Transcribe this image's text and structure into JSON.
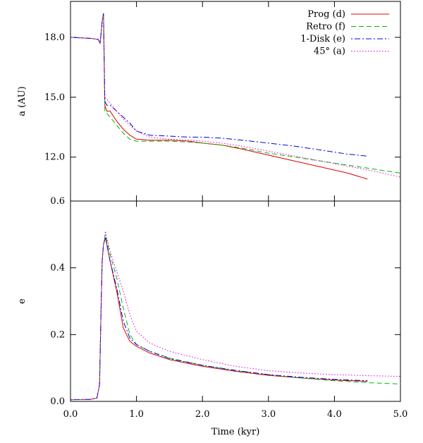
{
  "chart_data": [
    {
      "type": "line",
      "panel": "top",
      "ylabel": "a (AU)",
      "xlabel": "",
      "xlim": [
        0,
        5
      ],
      "ylim": [
        9.8,
        19.8
      ],
      "yticks": [
        12.0,
        15.0,
        18.0
      ],
      "ytick_labels": [
        "12.0",
        "15.0",
        "18.0"
      ],
      "legend": {
        "position": "top-right"
      },
      "series": [
        {
          "name": "Prog (d)",
          "color": "#e00000",
          "dash": "solid",
          "x": [
            0,
            0.3,
            0.42,
            0.45,
            0.48,
            0.5,
            0.52,
            0.55,
            0.6,
            0.7,
            0.8,
            0.9,
            1.0,
            1.2,
            1.5,
            1.8,
            2.0,
            2.3,
            2.6,
            3.0,
            3.4,
            3.8,
            4.2,
            4.5
          ],
          "y": [
            18.0,
            17.95,
            17.9,
            17.7,
            18.8,
            19.2,
            14.6,
            14.3,
            14.3,
            13.8,
            13.4,
            13.1,
            12.9,
            12.85,
            12.85,
            12.8,
            12.7,
            12.6,
            12.4,
            12.1,
            11.8,
            11.5,
            11.2,
            10.9
          ]
        },
        {
          "name": "Retro (f)",
          "color": "#00bb00",
          "dash": "7,4",
          "x": [
            0,
            0.3,
            0.42,
            0.45,
            0.48,
            0.5,
            0.52,
            0.55,
            0.6,
            0.7,
            0.8,
            0.9,
            1.0,
            1.2,
            1.5,
            1.8,
            2.0,
            2.3,
            2.6,
            3.0,
            3.4,
            3.8,
            4.2,
            4.6,
            5.0
          ],
          "y": [
            18.0,
            17.95,
            17.9,
            17.7,
            18.8,
            19.2,
            14.3,
            14.2,
            14.0,
            13.6,
            13.2,
            12.9,
            12.8,
            12.8,
            12.8,
            12.75,
            12.7,
            12.6,
            12.45,
            12.2,
            12.0,
            11.8,
            11.6,
            11.4,
            11.2
          ]
        },
        {
          "name": "1-Disk (e)",
          "color": "#0000dd",
          "dash": "2,3,8,3",
          "x": [
            0,
            0.3,
            0.42,
            0.45,
            0.48,
            0.5,
            0.52,
            0.55,
            0.6,
            0.7,
            0.8,
            0.9,
            1.0,
            1.2,
            1.5,
            1.8,
            2.0,
            2.3,
            2.6,
            3.0,
            3.4,
            3.8,
            4.2,
            4.5
          ],
          "y": [
            18.0,
            17.95,
            17.9,
            17.7,
            18.8,
            19.2,
            14.8,
            14.6,
            14.6,
            14.3,
            14.0,
            13.7,
            13.3,
            13.1,
            13.05,
            13.0,
            13.0,
            12.95,
            12.85,
            12.7,
            12.55,
            12.35,
            12.15,
            12.05
          ]
        },
        {
          "name": "45° (a)",
          "color": "#dd00dd",
          "dash": "1.5,2.5",
          "x": [
            0,
            0.3,
            0.42,
            0.45,
            0.48,
            0.5,
            0.52,
            0.55,
            0.6,
            0.7,
            0.8,
            0.9,
            1.0,
            1.2,
            1.5,
            1.8,
            2.0,
            2.3,
            2.6,
            3.0,
            3.4,
            3.8,
            4.2,
            4.6,
            5.0
          ],
          "y": [
            18.0,
            17.95,
            17.9,
            17.7,
            18.8,
            19.2,
            15.0,
            14.9,
            14.7,
            14.3,
            13.9,
            13.6,
            13.3,
            13.0,
            12.9,
            12.85,
            12.8,
            12.7,
            12.55,
            12.3,
            12.05,
            11.8,
            11.55,
            11.3,
            11.0
          ]
        }
      ]
    },
    {
      "type": "line",
      "panel": "bottom",
      "ylabel": "e",
      "xlabel": "Time (kyr)",
      "xlim": [
        0,
        5
      ],
      "ylim": [
        0,
        0.6
      ],
      "xticks": [
        0,
        1,
        2,
        3,
        4,
        5
      ],
      "xtick_labels": [
        "0.0",
        "1.0",
        "2.0",
        "3.0",
        "4.0",
        "5.0"
      ],
      "yticks": [
        0,
        0.2,
        0.4,
        0.6
      ],
      "ytick_labels": [
        "0.0",
        "0.2",
        "0.4",
        "0.6"
      ],
      "series": [
        {
          "name": "Prog (d)",
          "color": "#e00000",
          "dash": "solid",
          "x": [
            0,
            0.3,
            0.4,
            0.44,
            0.46,
            0.48,
            0.5,
            0.53,
            0.55,
            0.6,
            0.7,
            0.8,
            0.9,
            1.0,
            1.2,
            1.5,
            2.0,
            2.5,
            3.0,
            3.5,
            4.0,
            4.5
          ],
          "y": [
            0.005,
            0.006,
            0.01,
            0.05,
            0.25,
            0.42,
            0.47,
            0.49,
            0.47,
            0.42,
            0.33,
            0.22,
            0.18,
            0.165,
            0.145,
            0.125,
            0.105,
            0.09,
            0.078,
            0.07,
            0.064,
            0.06
          ]
        },
        {
          "name": "Retro (f)",
          "color": "#00bb00",
          "dash": "7,4",
          "x": [
            0,
            0.3,
            0.4,
            0.44,
            0.46,
            0.48,
            0.5,
            0.53,
            0.55,
            0.6,
            0.7,
            0.8,
            0.9,
            1.0,
            1.2,
            1.5,
            2.0,
            2.5,
            3.0,
            3.5,
            4.0,
            4.5,
            5.0
          ],
          "y": [
            0.005,
            0.006,
            0.01,
            0.05,
            0.25,
            0.42,
            0.47,
            0.5,
            0.48,
            0.44,
            0.37,
            0.28,
            0.2,
            0.17,
            0.15,
            0.13,
            0.108,
            0.092,
            0.08,
            0.07,
            0.062,
            0.056,
            0.052
          ]
        },
        {
          "name": "1-Disk (e)",
          "color": "#0000dd",
          "dash": "2,3,8,3",
          "x": [
            0,
            0.3,
            0.4,
            0.44,
            0.46,
            0.48,
            0.5,
            0.53,
            0.55,
            0.6,
            0.7,
            0.8,
            0.9,
            1.0,
            1.2,
            1.5,
            2.0,
            2.5,
            3.0,
            3.5,
            4.0,
            4.5
          ],
          "y": [
            0.005,
            0.006,
            0.01,
            0.05,
            0.25,
            0.42,
            0.47,
            0.49,
            0.47,
            0.42,
            0.34,
            0.24,
            0.19,
            0.17,
            0.15,
            0.128,
            0.108,
            0.093,
            0.08,
            0.072,
            0.066,
            0.062
          ]
        },
        {
          "name": "45° (a)",
          "color": "#dd00dd",
          "dash": "1.5,2.5",
          "x": [
            0,
            0.3,
            0.4,
            0.44,
            0.46,
            0.48,
            0.5,
            0.53,
            0.55,
            0.6,
            0.7,
            0.8,
            0.9,
            1.0,
            1.2,
            1.5,
            2.0,
            2.5,
            3.0,
            3.5,
            4.0,
            4.5,
            5.0
          ],
          "y": [
            0.005,
            0.006,
            0.01,
            0.05,
            0.25,
            0.42,
            0.47,
            0.51,
            0.49,
            0.45,
            0.39,
            0.33,
            0.26,
            0.21,
            0.175,
            0.15,
            0.125,
            0.105,
            0.092,
            0.085,
            0.08,
            0.077,
            0.075
          ]
        }
      ]
    }
  ]
}
